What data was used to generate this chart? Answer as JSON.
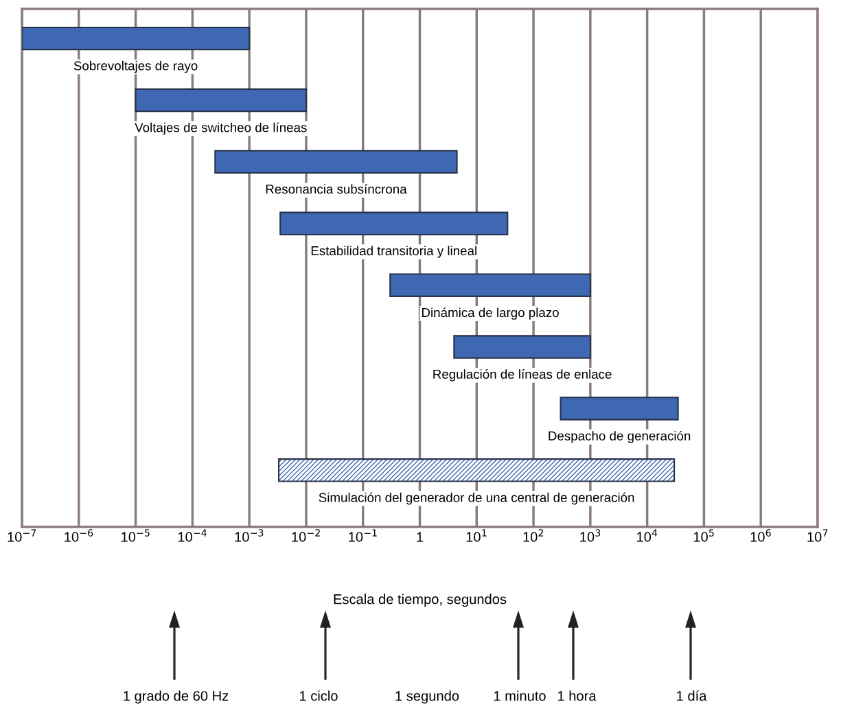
{
  "chart_data": {
    "type": "bar",
    "orientation": "horizontal",
    "log": "x",
    "xlabel": "Escala de tiempo, segundos",
    "categories": [
      "Sobrevoltajes de rayo",
      "Voltajes de switcheo de líneas",
      "Resonancia subsíncrona",
      "Estabilidad transitoria y lineal",
      "Dinámica de largo plazo",
      "Regulación de líneas de enlace",
      "Despacho de generación",
      "Simulación del generador de una central de generación"
    ],
    "series": [
      {
        "color": "#3e68b1",
        "base": [
          1e-07,
          1e-05,
          0.00025,
          0.0035,
          0.3,
          4,
          300,
          null
        ],
        "values": [
          0.0009999,
          0.00999,
          4.49975,
          34.9965,
          999.7,
          996,
          34700,
          null
        ]
      },
      {
        "color": "#3e68b1",
        "base": [
          null,
          null,
          null,
          null,
          null,
          null,
          null,
          0.0033
        ],
        "values": [
          null,
          null,
          null,
          null,
          null,
          null,
          null,
          29999.9967
        ]
      }
    ],
    "xlim": [
      1e-07,
      10000000.0
    ],
    "xticks": [
      {
        "value": 1e-07,
        "label": "10$^{−7}$"
      },
      {
        "value": 1e-06,
        "label": "10$^{−6}$"
      },
      {
        "value": 1e-05,
        "label": "10$^{−5}$"
      },
      {
        "value": 0.0001,
        "label": "10$^{−4}$"
      },
      {
        "value": 0.001,
        "label": "10$^{−3}$"
      },
      {
        "value": 0.01,
        "label": "10$^{−2}$"
      },
      {
        "value": 0.1,
        "label": "10$^{−1}$"
      },
      1,
      {
        "value": 10,
        "label": "10$^{1}$"
      },
      {
        "value": 100,
        "label": "10$^{2}$"
      },
      {
        "value": 1000,
        "label": "10$^{3}$"
      },
      {
        "value": 10000,
        "label": "10$^{4}$"
      },
      {
        "value": 100000,
        "label": "10$^{5}$"
      },
      {
        "value": 1000000,
        "label": "10$^{6}$"
      },
      {
        "value": 10000000,
        "label": "10$^{7}$"
      }
    ],
    "grid": "x",
    "tick_labels": "x",
    "annotations": [
      "1 grado de 60 Hz",
      "1 ciclo",
      "1 segundo",
      "1 minuto",
      "1 hora",
      "1 día"
    ]
  }
}
